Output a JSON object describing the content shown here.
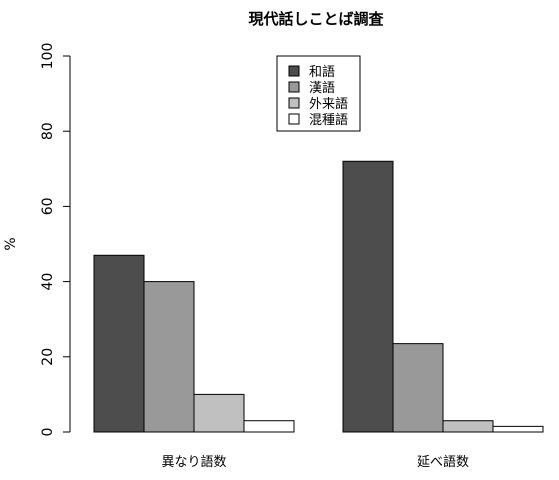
{
  "chart_data": {
    "type": "bar",
    "title": "現代話しことば調査",
    "xlabel": "",
    "ylabel": "%",
    "ylim": [
      0,
      100
    ],
    "yticks": [
      0,
      20,
      40,
      60,
      80,
      100
    ],
    "categories": [
      "異なり語数",
      "延べ語数"
    ],
    "series": [
      {
        "name": "和語",
        "values": [
          47,
          72
        ],
        "color": "#4d4d4d"
      },
      {
        "name": "漢語",
        "values": [
          40,
          23.5
        ],
        "color": "#999999"
      },
      {
        "name": "外来語",
        "values": [
          10,
          3
        ],
        "color": "#c0c0c0"
      },
      {
        "name": "混種語",
        "values": [
          3,
          1.5
        ],
        "color": "#ffffff"
      }
    ],
    "grid": false,
    "legend": "top-center"
  }
}
